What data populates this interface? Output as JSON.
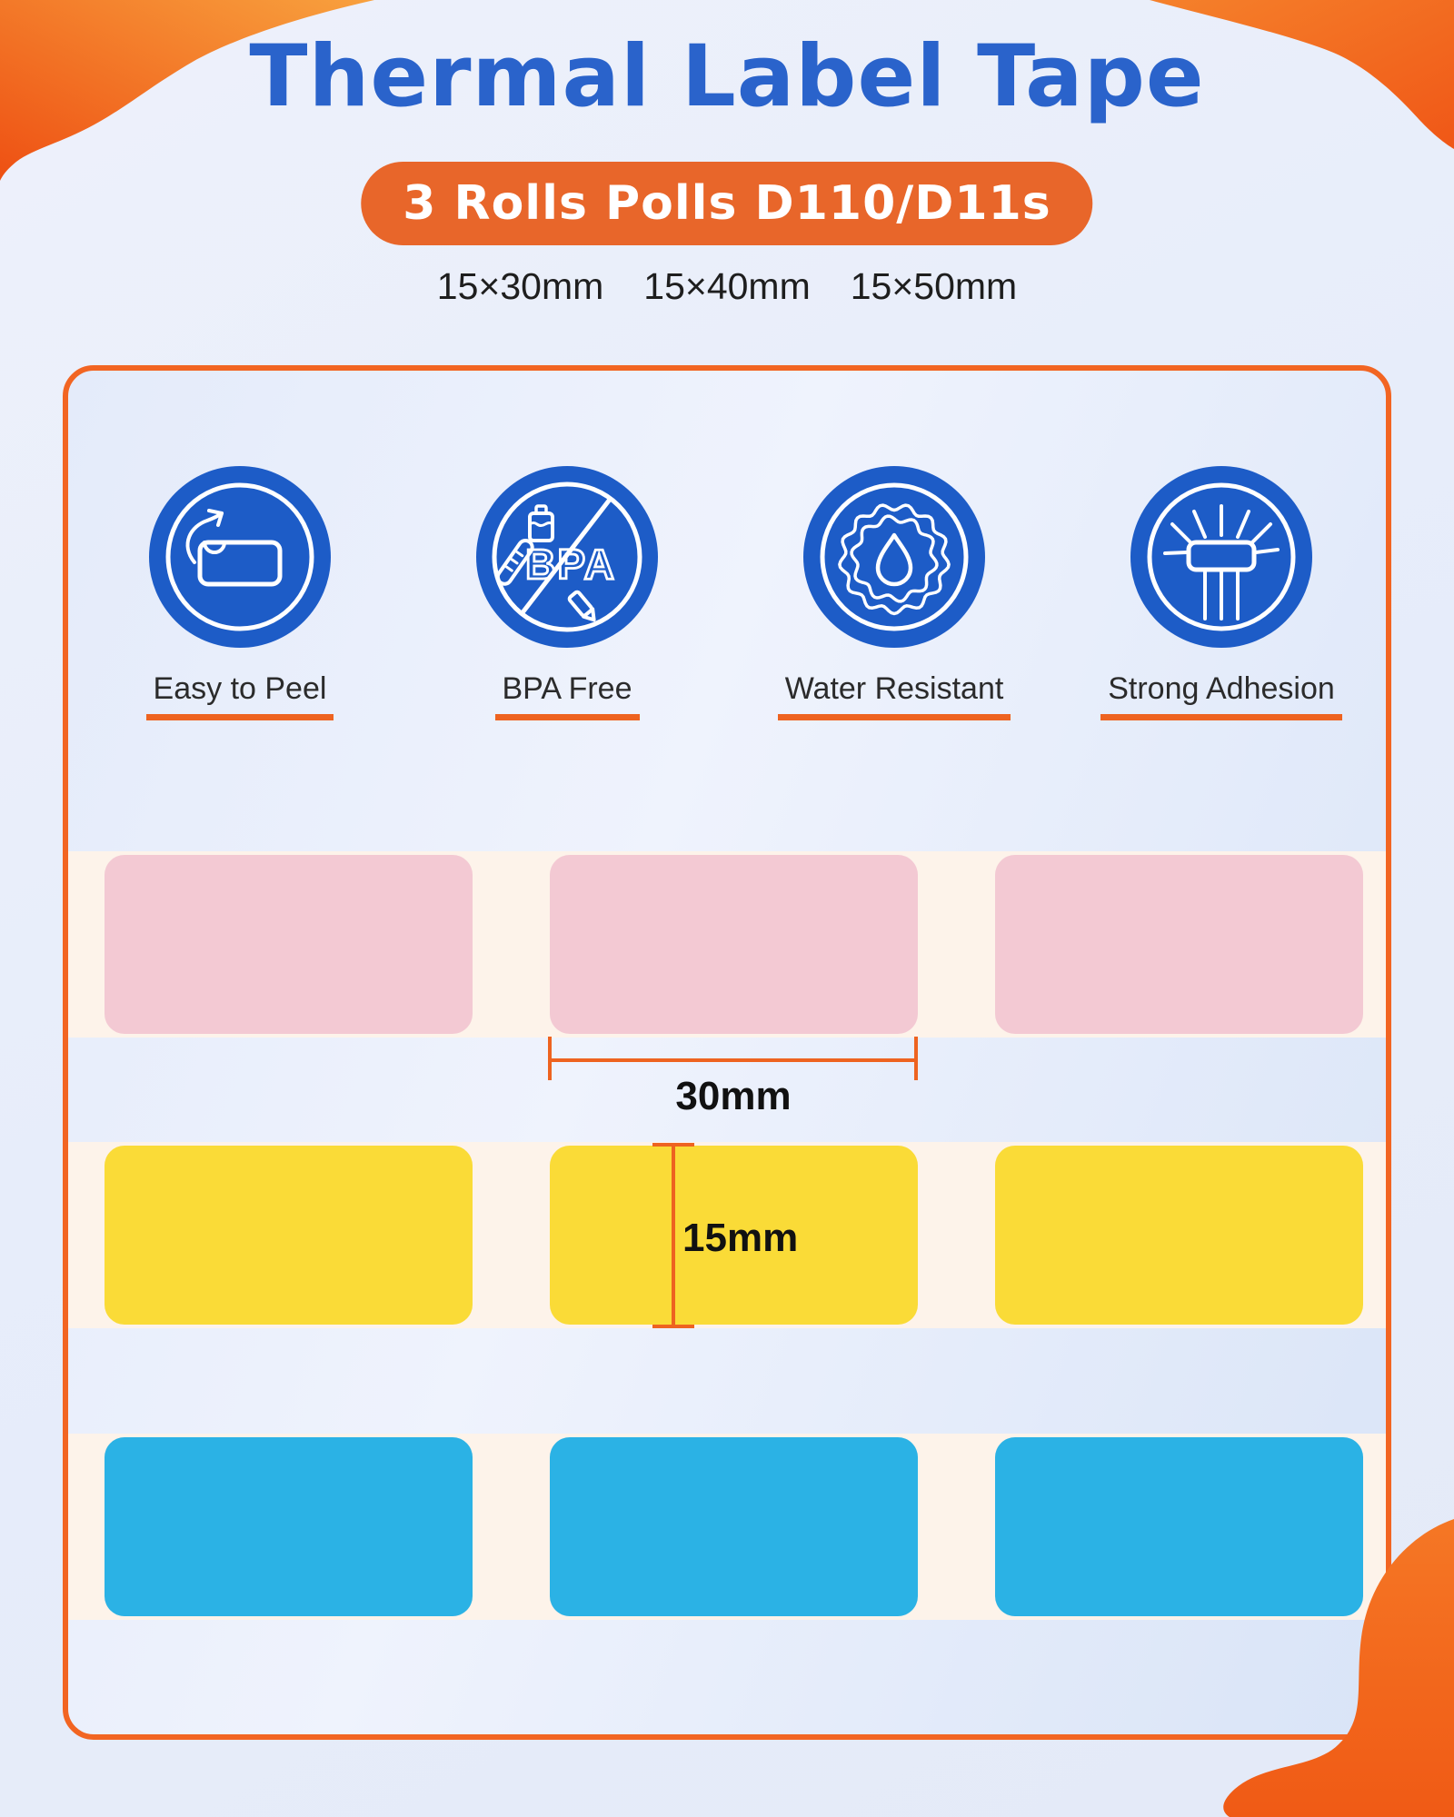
{
  "page": {
    "title": "Thermal Label Tape",
    "badge": "3 Rolls Polls D110/D11s",
    "sizes": [
      "15×30mm",
      "15×40mm",
      "15×50mm"
    ]
  },
  "features": [
    {
      "label": "Easy to Peel",
      "icon": "peel-icon"
    },
    {
      "label": "BPA Free",
      "icon": "bpa-free-icon",
      "icon_text": "BPA"
    },
    {
      "label": "Water Resistant",
      "icon": "water-drop-icon"
    },
    {
      "label": "Strong Adhesion",
      "icon": "adhesion-icon"
    }
  ],
  "dimensions": {
    "width": "30mm",
    "height": "15mm"
  },
  "label_rows": [
    {
      "name": "pink",
      "color": "#F3C9D3"
    },
    {
      "name": "yellow",
      "color": "#FADB37"
    },
    {
      "name": "blue",
      "color": "#2BB2E5"
    }
  ],
  "colors": {
    "accent": "#EE6320",
    "badge_bg": "#E8662A",
    "box_border": "#F26522",
    "title_color": "#2A63CB",
    "icon_bg": "#1D5CC7",
    "strip_bg": "#FDF3EA",
    "text_dark": "#1E1E1E"
  }
}
